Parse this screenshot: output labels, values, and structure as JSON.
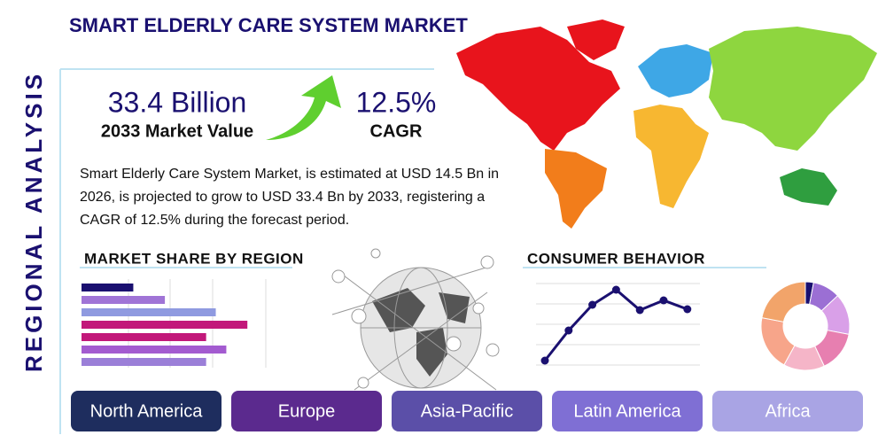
{
  "header": {
    "title": "SMART ELDERLY CARE SYSTEM MARKET",
    "side_title": "REGIONAL ANALYSIS"
  },
  "stats": [
    {
      "value": "33.4 Billion",
      "label": "2033 Market Value"
    },
    {
      "value": "12.5%",
      "label": "CAGR"
    }
  ],
  "summary": "Smart Elderly Care System Market, is estimated at USD 14.5 Bn in 2026, is projected to grow to USD 33.4 Bn by 2033, registering a CAGR of 12.5% during the forecast period.",
  "market_share": {
    "title": "MARKET SHARE BY REGION",
    "type": "bar",
    "values": [
      59,
      95,
      153,
      189,
      142,
      165,
      142
    ],
    "xlim": [
      0,
      210
    ],
    "colors": [
      "#1a1070",
      "#a074d6",
      "#8f9ae0",
      "#c2187a",
      "#c2187a",
      "#a35bd0",
      "#9b7fd8"
    ]
  },
  "consumer_behavior": {
    "title": "CONSUMER BEHAVIOR",
    "type": "line",
    "values": [
      8,
      42,
      71,
      88,
      65,
      76,
      66
    ],
    "ylim": [
      0,
      95
    ],
    "color": "#1a1070"
  },
  "donut": {
    "type": "pie",
    "values": [
      3,
      10,
      15,
      15,
      15,
      20,
      22
    ],
    "colors": [
      "#1a1070",
      "#9b6fd4",
      "#d9a0e8",
      "#e77fb0",
      "#f5b5c8",
      "#f7a58a",
      "#f2a46a"
    ]
  },
  "regions": [
    {
      "label": "North America",
      "color": "#1e2d5e"
    },
    {
      "label": "Europe",
      "color": "#5b2a8e"
    },
    {
      "label": "Asia-Pacific",
      "color": "#5b4fa8"
    },
    {
      "label": "Latin America",
      "color": "#7f6fd4"
    },
    {
      "label": "Africa",
      "color": "#a9a4e4"
    }
  ]
}
